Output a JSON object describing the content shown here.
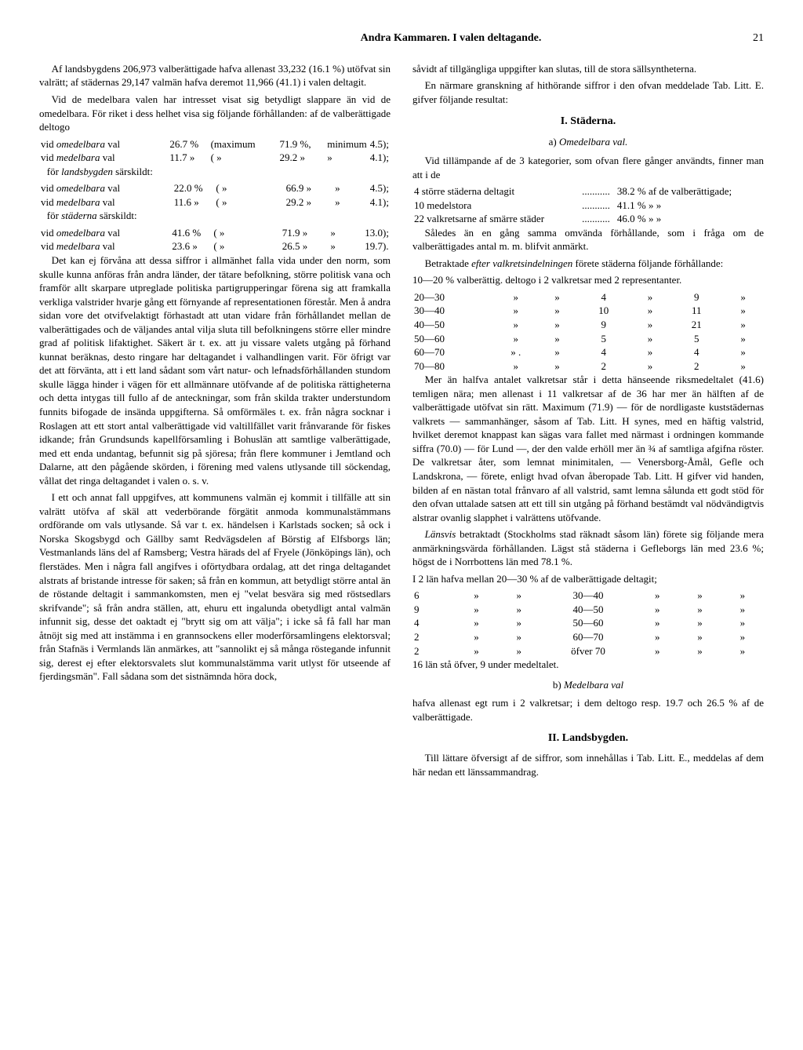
{
  "header": {
    "title": "Andra Kammaren.   I valen deltagande.",
    "page": "21"
  },
  "left": {
    "p1": "Af landsbygdens 206,973 valberättigade hafva allenast 33,232 (16.1 %) utöfvat sin valrätt; af städernas 29,147 valmän hafva deremot 11,966 (41.1) i valen deltagit.",
    "p2": "Vid de medelbara valen har intresset visat sig betydligt slappare än vid de omedelbara. För riket i dess helhet visa sig följande förhållanden: af de valberättigade deltogo",
    "rows_riket": [
      [
        "vid omedelbara val",
        "26.7 %",
        "(maximum",
        "71.9 %,",
        "minimum",
        "4.5);"
      ],
      [
        "vid medelbara val",
        "11.7 »",
        "(        »",
        "29.2 »",
        "»",
        "4.1);"
      ]
    ],
    "landsbygden_label": "för landsbygden särskildt:",
    "rows_land": [
      [
        "vid omedelbara val",
        "22.0 %",
        "(        »",
        "66.9 »",
        "»",
        "4.5);"
      ],
      [
        "vid medelbara val",
        "11.6 »",
        "(        »",
        "29.2 »",
        "»",
        "4.1);"
      ]
    ],
    "stader_label": "för städerna särskildt:",
    "rows_stad": [
      [
        "vid omedelbara val",
        "41.6 %",
        "(        »",
        "71.9 »",
        "»",
        "13.0);"
      ],
      [
        "vid medelbara val",
        "23.6 »",
        "(        »",
        "26.5 »",
        "»",
        "19.7)."
      ]
    ],
    "p3": "Det kan ej förvåna att dessa siffror i allmänhet falla vida under den norm, som skulle kunna anföras från andra länder, der tätare befolkning, större politisk vana och framför allt skarpare utpreglade politiska partigrupperingar förena sig att framkalla verkliga valstrider hvarje gång ett förnyande af representationen förestår. Men å andra sidan vore det otvifvelaktigt förhastadt att utan vidare från förhållandet mellan de valberättigades och de väljandes antal vilja sluta till befolkningens större eller mindre grad af politisk lifaktighet. Säkert är t. ex. att ju vissare valets utgång på förhand kunnat beräknas, desto ringare har deltagandet i valhandlingen varit. För öfrigt var det att förvänta, att i ett land sådant som vårt natur- och lefnadsförhållanden stundom skulle lägga hinder i vägen för ett allmännare utöfvande af de politiska rättigheterna och detta intygas till fullo af de anteckningar, som från skilda trakter understundom funnits bifogade de insända uppgifterna. Så omförmäles t. ex. från några socknar i Roslagen att ett stort antal valberättigade vid valtillfället varit frånvarande för fiskes idkande; från Grundsunds kapellförsamling i Bohuslän att samtlige valberättigade, med ett enda undantag, befunnit sig på sjöresa; från flere kommuner i Jemtland och Dalarne, att den pågående skörden, i förening med valens utlysande till söckendag, vållat det ringa deltagandet i valen o. s. v.",
    "p4": "I ett och annat fall uppgifves, att kommunens valmän ej kommit i tillfälle att sin valrätt utöfva af skäl att vederbörande förgätit anmoda kommunalstämmans ordförande om vals utlysande. Så var t. ex. händelsen i Karlstads socken; så ock i Norska Skogsbygd och Gällby samt Redvägsdelen af Börstig af Elfsborgs län; Vestmanlands läns del af Ramsberg; Vestra härads del af Fryele (Jönköpings län), och flerstädes. Men i några fall angifves i oförtydbara ordalag, att det ringa deltagandet alstrats af bristande intresse för saken; så från en kommun, att betydligt större antal än de röstande deltagit i sammankomsten, men ej \"velat besvära sig med röstsedlars skrifvande\"; så från andra ställen, att, ehuru ett ingalunda obetydligt antal valmän infunnit sig, desse det oaktadt ej \"brytt sig om att välja\"; i icke så få fall har man åtnöjt sig med att instämma i en grannsockens eller moderförsamlingens elektorsval; från Stafnäs i Vermlands län anmärkes, att \"sannolikt ej så många röstegande infunnit sig, derest ej efter elektorsvalets slut kommunalstämma varit utlyst för utseende af fjerdingsmän\". Fall sådana som det sistnämnda höra dock,"
  },
  "right": {
    "p1": "såvidt af tillgängliga uppgifter kan slutas, till de stora sällsyntheterna.",
    "p2": "En närmare granskning af hithörande siffror i den ofvan meddelade Tab. Litt. E. gifver följande resultat:",
    "h2a": "I. Städerna.",
    "h3a": "a) Omedelbara val.",
    "p3": "Vid tillämpande af de 3 kategorier, som ofvan flere gånger användts, finner man att i de",
    "city_rows": [
      [
        "4 större städerna deltagit",
        "38.2 % af de valberättigade;"
      ],
      [
        "10 medelstora",
        "41.1 %      »                       »"
      ],
      [
        "22 valkretsarne af smärre städer",
        "46.0 %      »                       »"
      ]
    ],
    "p4": "Således än en gång samma omvända förhållande, som i fråga om de valberättigades antal m. m. blifvit anmärkt.",
    "p5": "Betraktade efter valkretsindelningen förete städerna följande förhållande:",
    "range_header": "10—20 % valberättig. deltogo i 2 valkretsar med 2 representanter.",
    "range_rows": [
      [
        "20—30",
        "»",
        "»",
        "4",
        "»",
        "9",
        "»"
      ],
      [
        "30—40",
        "»",
        "»",
        "10",
        "»",
        "11",
        "»"
      ],
      [
        "40—50",
        "»",
        "»",
        "9",
        "»",
        "21",
        "»"
      ],
      [
        "50—60",
        "»",
        "»",
        "5",
        "»",
        "5",
        "»"
      ],
      [
        "60—70",
        "» .",
        "»",
        "4",
        "»",
        "4",
        "»"
      ],
      [
        "70—80",
        "»",
        "»",
        "2",
        "»",
        "2",
        "»"
      ]
    ],
    "p6": "Mer än halfva antalet valkretsar står i detta hänseende riksmedeltalet (41.6) temligen nära; men allenast i 11 valkretsar af de 36 har mer än hälften af de valberättigade utöfvat sin rätt. Maximum (71.9) — för de nordligaste kuststädernas valkrets — sammanhänger, såsom af Tab. Litt. H synes, med en häftig valstrid, hvilket deremot knappast kan sägas vara fallet med närmast i ordningen kommande siffra (70.0) — för Lund —, der den valde erhöll mer än ¾ af samtliga afgifna röster. De valkretsar åter, som lemnat minimitalen, — Venersborg-Åmål, Gefle och Landskrona, — förete, enligt hvad ofvan åberopade Tab. Litt. H gifver vid handen, bilden af en nästan total frånvaro af all valstrid, samt lemna sålunda ett godt stöd för den ofvan uttalade satsen att ett till sin utgång på förhand bestämdt val nödvändigtvis alstrar ovanlig slapphet i valrättens utöfvande.",
    "p7": "Länsvis betraktadt (Stockholms stad räknadt såsom län) förete sig följande mera anmärkningsvärda förhållanden. Lägst stå städerna i Gefleborgs län med 23.6 %; högst de i Norrbottens län med 78.1 %.",
    "lan_header": "I 2 län hafva mellan 20—30 % af de valberättigade deltagit;",
    "lan_rows": [
      [
        "6",
        "»",
        "»",
        "30—40",
        "»",
        "»",
        "»"
      ],
      [
        "9",
        "»",
        "»",
        "40—50",
        "»",
        "»",
        "»"
      ],
      [
        "4",
        "»",
        "»",
        "50—60",
        "»",
        "»",
        "»"
      ],
      [
        "2",
        "»",
        "»",
        "60—70",
        "»",
        "»",
        "»"
      ],
      [
        "2",
        "»",
        "»",
        "öfver 70",
        "»",
        "»",
        "»"
      ]
    ],
    "p8": "16 län stå öfver, 9 under medeltalet.",
    "h3b": "b) Medelbara val",
    "p9": "hafva allenast egt rum i 2 valkretsar; i dem deltogo resp. 19.7 och 26.5 % af de valberättigade.",
    "h2b": "II. Landsbygden.",
    "p10": "Till lättare öfversigt af de siffror, som innehållas i Tab. Litt. E., meddelas af dem här nedan ett länssammandrag."
  }
}
